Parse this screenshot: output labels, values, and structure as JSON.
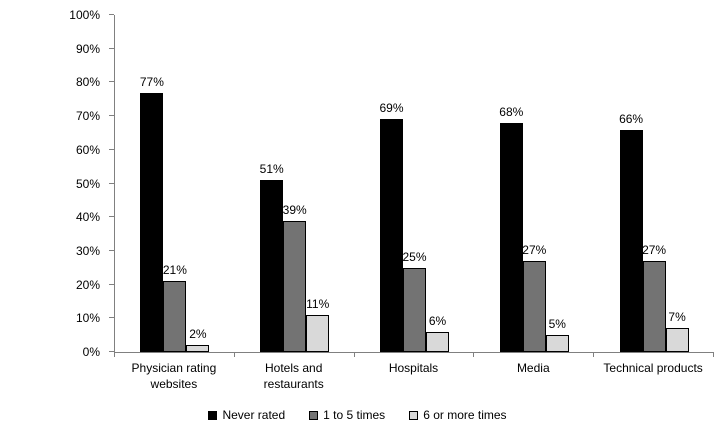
{
  "chart_data": {
    "type": "bar",
    "title": "",
    "xlabel": "",
    "ylabel": "",
    "categories": [
      "Physician rating\nwebsites",
      "Hotels and\nrestaurants",
      "Hospitals",
      "Media",
      "Technical products"
    ],
    "series": [
      {
        "name": "Never rated",
        "color": "#000000",
        "values": [
          77,
          51,
          69,
          68,
          66
        ]
      },
      {
        "name": "1 to 5 times",
        "color": "#737373",
        "values": [
          21,
          39,
          25,
          27,
          27
        ]
      },
      {
        "name": "6 or more times",
        "color": "#d9d9d9",
        "values": [
          2,
          11,
          6,
          5,
          7
        ]
      }
    ],
    "ylim": [
      0,
      100
    ],
    "y_tick_step": 10,
    "y_tick_suffix": "%",
    "value_suffix": "%",
    "grid": false,
    "legend_position": "bottom",
    "axis_color": "#808080",
    "bar_border_color": "#000000"
  }
}
